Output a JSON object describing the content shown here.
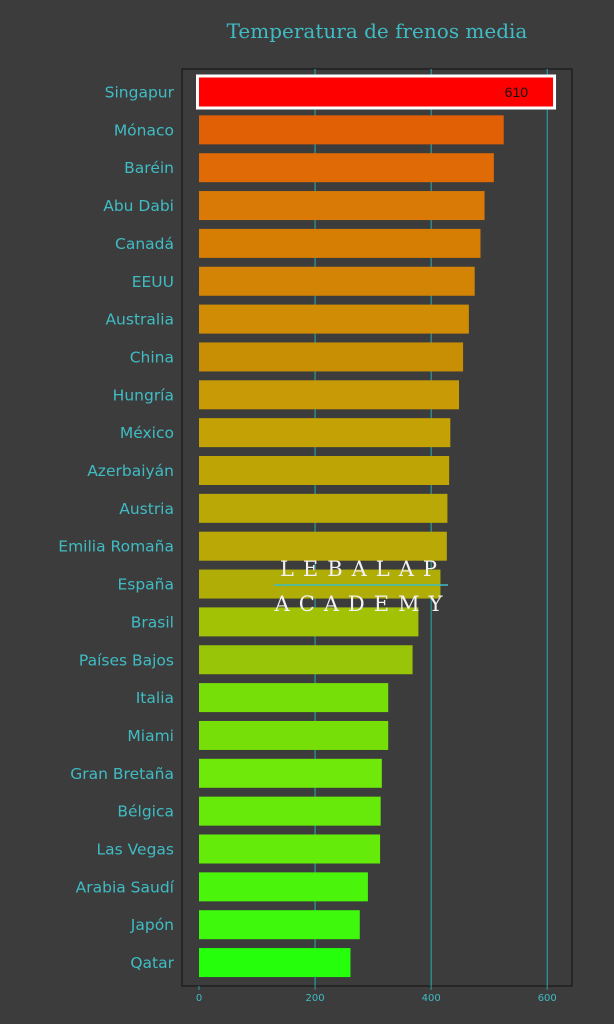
{
  "colors": {
    "background": "#3c3c3c",
    "panel": "#3c3c3c",
    "text": "#3fbcc4",
    "grid": "#2e9a9a",
    "highlight_outline": "#ffffff",
    "value_label": "#111111",
    "watermark": "#f2f2f2",
    "watermark_rule": "#3fbcc4"
  },
  "watermark": {
    "line1": "LEBALAP",
    "line2": "ACADEMY"
  },
  "chart_data": {
    "type": "bar",
    "orientation": "horizontal",
    "title": "Temperatura de frenos media",
    "xlabel": "",
    "ylabel": "",
    "xlim": [
      0,
      640
    ],
    "xticks": [
      0,
      200,
      400,
      600
    ],
    "grid": "vertical major lines",
    "categories": [
      "Singapur",
      "Mónaco",
      "Baréin",
      "Abu Dabi",
      "Canadá",
      "EEUU",
      "Australia",
      "China",
      "Hungría",
      "México",
      "Azerbaiyán",
      "Austria",
      "Emilia Romaña",
      "España",
      "Brasil",
      "Países Bajos",
      "Italia",
      "Miami",
      "Gran Bretaña",
      "Bélgica",
      "Las Vegas",
      "Arabia Saudí",
      "Japón",
      "Qatar"
    ],
    "values": [
      610,
      525,
      508,
      492,
      485,
      475,
      465,
      455,
      448,
      433,
      431,
      428,
      427,
      416,
      378,
      368,
      326,
      326,
      315,
      313,
      312,
      291,
      277,
      261
    ],
    "bar_colors": [
      "#ff0000",
      "#e26005",
      "#e06a05",
      "#d87a05",
      "#d67e04",
      "#d48404",
      "#cf8c04",
      "#c98f04",
      "#c89a05",
      "#c4a205",
      "#bfa405",
      "#b9a806",
      "#b9a806",
      "#b0ad06",
      "#a2c206",
      "#98c507",
      "#77df08",
      "#77df08",
      "#6ee909",
      "#67ea0a",
      "#64eb0a",
      "#4bf50b",
      "#3ff90c",
      "#25ff0c"
    ],
    "highlight": {
      "category": "Singapur",
      "value_label": "610"
    }
  }
}
